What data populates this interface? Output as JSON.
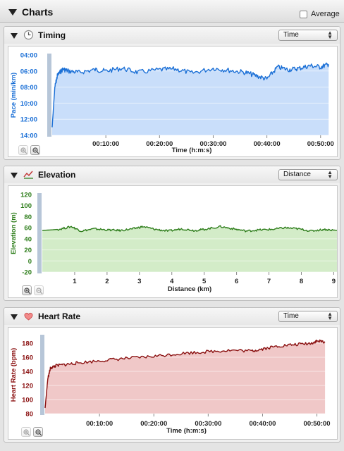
{
  "header": {
    "title": "Charts",
    "average_label": "Average"
  },
  "panels": [
    {
      "id": "timing",
      "title": "Timing",
      "icon": "clock-icon",
      "selector": "Time",
      "color": "#1a6fd6",
      "fill": "#c9defa",
      "zoom_in_enabled": false,
      "zoom_out_enabled": true,
      "chart_data": {
        "type": "area",
        "ylabel": "Pace (min/km)",
        "xlabel": "Time (h:m:s)",
        "ylim": [
          "04:00",
          "14:00"
        ],
        "y_inverted": true,
        "y_ticks": [
          "04:00",
          "06:00",
          "08:00",
          "10:00",
          "12:00",
          "14:00"
        ],
        "x_ticks": [
          "00:10:00",
          "00:20:00",
          "00:30:00",
          "00:40:00",
          "00:50:00"
        ],
        "x": [
          "00:00:00",
          "00:00:30",
          "00:01:00",
          "00:02:00",
          "00:03:00",
          "00:05:00",
          "00:08:00",
          "00:10:00",
          "00:13:00",
          "00:16:00",
          "00:20:00",
          "00:23:00",
          "00:26:00",
          "00:30:00",
          "00:33:00",
          "00:36:00",
          "00:38:00",
          "00:40:00",
          "00:42:00",
          "00:44:00",
          "00:46:00",
          "00:48:00",
          "00:50:00",
          "00:51:30"
        ],
        "y": [
          "13:00",
          "08:00",
          "06:30",
          "05:45",
          "06:00",
          "06:10",
          "05:50",
          "06:00",
          "05:40",
          "06:10",
          "05:50",
          "05:45",
          "06:15",
          "05:40",
          "05:55",
          "06:10",
          "06:35",
          "07:00",
          "05:30",
          "05:50",
          "05:40",
          "05:20",
          "05:30",
          "05:10"
        ]
      }
    },
    {
      "id": "elevation",
      "title": "Elevation",
      "icon": "elevation-icon",
      "selector": "Distance",
      "color": "#2d7d1a",
      "fill": "#d3ecc8",
      "zoom_in_enabled": true,
      "zoom_out_enabled": false,
      "chart_data": {
        "type": "area",
        "ylabel": "Elevation (m)",
        "xlabel": "Distance (km)",
        "ylim": [
          -20,
          120
        ],
        "y_ticks": [
          120,
          100,
          80,
          60,
          40,
          20,
          0,
          -20
        ],
        "x_ticks": [
          1,
          2,
          3,
          4,
          5,
          6,
          7,
          8,
          9
        ],
        "xlim": [
          0,
          9.1
        ],
        "x": [
          0,
          0.5,
          0.9,
          1.2,
          1.6,
          2.0,
          2.4,
          2.8,
          3.1,
          3.5,
          3.9,
          4.3,
          4.7,
          5.0,
          5.5,
          5.9,
          6.3,
          6.7,
          7.1,
          7.5,
          7.9,
          8.3,
          8.7,
          9.1
        ],
        "y": [
          55,
          57,
          62,
          54,
          58,
          56,
          55,
          58,
          62,
          57,
          54,
          58,
          55,
          57,
          62,
          58,
          54,
          56,
          57,
          60,
          58,
          54,
          57,
          55
        ]
      }
    },
    {
      "id": "heart-rate",
      "title": "Heart Rate",
      "icon": "heart-icon",
      "selector": "Time",
      "color": "#8a1010",
      "fill": "#f0c8c8",
      "zoom_in_enabled": false,
      "zoom_out_enabled": true,
      "chart_data": {
        "type": "area",
        "ylabel": "Heart Rate (bpm)",
        "xlabel": "Time (h:m:s)",
        "ylim": [
          80,
          190
        ],
        "y_ticks": [
          180,
          160,
          140,
          120,
          100,
          80
        ],
        "x_ticks": [
          "00:10:00",
          "00:20:00",
          "00:30:00",
          "00:40:00",
          "00:50:00"
        ],
        "x": [
          "00:00:00",
          "00:00:30",
          "00:01:00",
          "00:02:00",
          "00:04:00",
          "00:06:00",
          "00:10:00",
          "00:14:00",
          "00:18:00",
          "00:22:00",
          "00:26:00",
          "00:30:00",
          "00:34:00",
          "00:38:00",
          "00:40:00",
          "00:43:00",
          "00:46:00",
          "00:49:00",
          "00:50:00",
          "00:51:30"
        ],
        "y": [
          88,
          130,
          145,
          148,
          150,
          152,
          155,
          158,
          160,
          163,
          166,
          168,
          170,
          169,
          172,
          176,
          178,
          180,
          183,
          182
        ]
      }
    }
  ]
}
